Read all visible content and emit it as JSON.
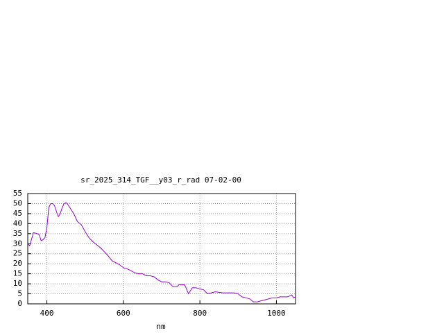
{
  "chart_data": {
    "type": "line",
    "title": "sr_2025_314_TGF__y03_r_rad 07-02-00",
    "x_label": "nm",
    "x": [
      350,
      355,
      365,
      375,
      380,
      385,
      390,
      395,
      400,
      405,
      410,
      415,
      420,
      425,
      430,
      435,
      440,
      445,
      450,
      455,
      460,
      470,
      480,
      490,
      500,
      510,
      520,
      530,
      540,
      550,
      560,
      570,
      580,
      590,
      600,
      610,
      620,
      630,
      640,
      650,
      660,
      670,
      680,
      690,
      700,
      710,
      720,
      730,
      740,
      745,
      760,
      765,
      770,
      780,
      790,
      800,
      810,
      820,
      830,
      840,
      860,
      880,
      890,
      900,
      910,
      920,
      930,
      940,
      950,
      960,
      970,
      980,
      990,
      1000,
      1010,
      1020,
      1030,
      1040,
      1045,
      1050
    ],
    "series": [
      {
        "color": "#9400d3",
        "values": [
          30,
          29,
          35.5,
          35,
          34.5,
          31.5,
          32,
          33,
          38,
          48,
          50,
          50,
          49,
          46,
          43.5,
          45,
          48,
          50,
          50.5,
          49.5,
          48,
          45,
          41,
          39.5,
          36,
          33,
          31,
          29.5,
          28,
          26,
          24,
          21.5,
          20.5,
          19.5,
          18,
          17.5,
          16.5,
          15.5,
          15,
          15,
          14,
          14,
          13.5,
          12,
          11,
          11,
          10.5,
          8.5,
          8.5,
          9.5,
          9.5,
          7.5,
          5,
          8,
          8,
          7.5,
          7,
          5,
          5.5,
          6,
          5.5,
          5.5,
          5.5,
          5,
          3.5,
          3,
          2.5,
          1,
          1,
          1.5,
          2,
          2.5,
          3,
          3,
          3.5,
          3.5,
          3.5,
          4.5,
          3,
          3.5
        ]
      }
    ],
    "xlim": [
      350,
      1050
    ],
    "ylim": [
      0,
      55
    ],
    "xticks": [
      400,
      600,
      800,
      1000
    ],
    "yticks": [
      0,
      5,
      10,
      15,
      20,
      25,
      30,
      35,
      40,
      45,
      50,
      55
    ],
    "grid": true
  }
}
